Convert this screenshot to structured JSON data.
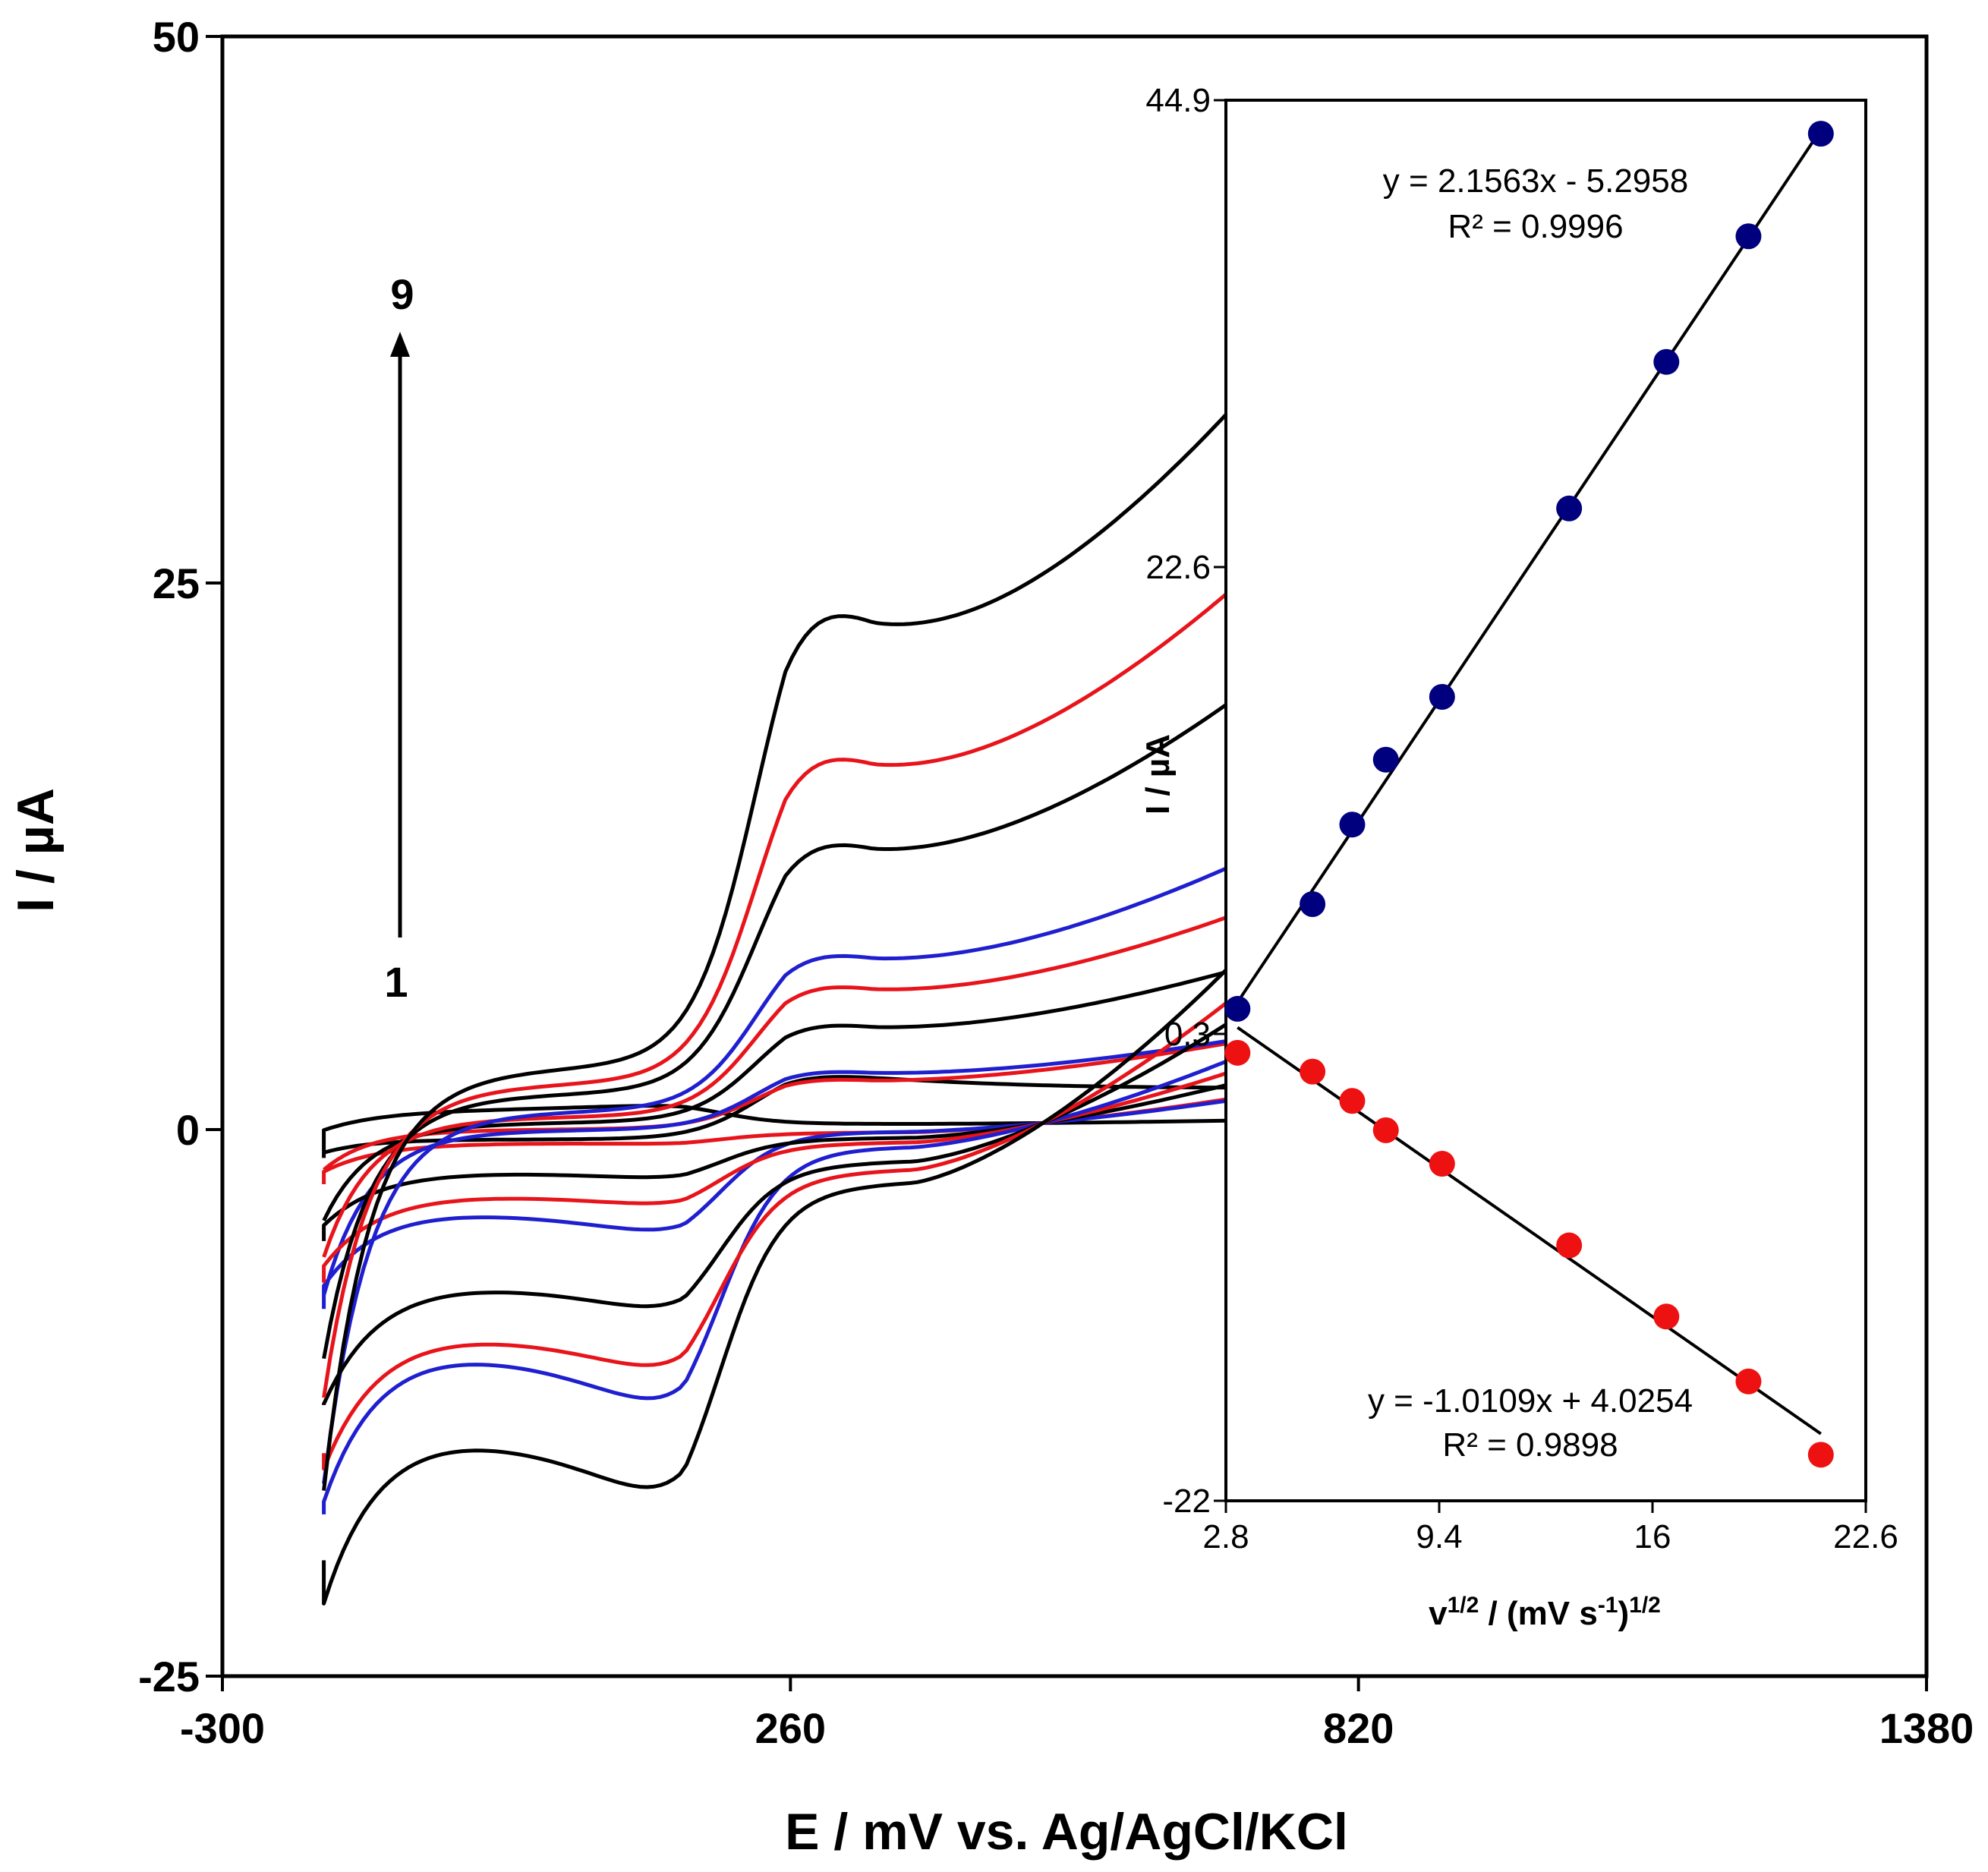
{
  "chart_data": [
    {
      "type": "line",
      "xlabel": "E / mV vs. Ag/AgCl/KCl",
      "ylabel": "I / µA",
      "xlim": [
        -300,
        1380
      ],
      "ylim": [
        -25,
        50
      ],
      "x_ticks": [
        "-300",
        "260",
        "820",
        "1380"
      ],
      "y_ticks": [
        "-25",
        "0",
        "25",
        "50"
      ],
      "scan_range": [
        -200,
        710
      ],
      "series_colors": [
        "#000000",
        "#e8141b",
        "#1f1fd0",
        "#000000",
        "#e8141b",
        "#1f1fd0",
        "#000000",
        "#e8141b",
        "#000000"
      ],
      "series": [
        {
          "anodic_peak_E": 255,
          "anodic_peak_I": 3.8,
          "cathodic_peak_E": 155,
          "cathodic_peak_I": 1.0,
          "start_I": -1.3,
          "end_I": 1.3
        },
        {
          "anodic_peak_E": 255,
          "anodic_peak_I": 5.5,
          "cathodic_peak_E": 155,
          "cathodic_peak_I": -1.0,
          "start_I": -2.5,
          "end_I": 4.0
        },
        {
          "anodic_peak_E": 255,
          "anodic_peak_I": 5.8,
          "cathodic_peak_E": 155,
          "cathodic_peak_I": -5.9,
          "start_I": -8.2,
          "end_I": 3.8
        },
        {
          "anodic_peak_E": 255,
          "anodic_peak_I": 9.8,
          "cathodic_peak_E": 155,
          "cathodic_peak_I": -2.8,
          "start_I": -5.1,
          "end_I": 5.8
        },
        {
          "anodic_peak_E": 255,
          "anodic_peak_I": 13.0,
          "cathodic_peak_E": 155,
          "cathodic_peak_I": -4.2,
          "start_I": -7.0,
          "end_I": 7.3
        },
        {
          "anodic_peak_E": 255,
          "anodic_peak_I": 15.8,
          "cathodic_peak_E": 155,
          "cathodic_peak_I": -15.2,
          "start_I": -17.6,
          "end_I": 8.8
        },
        {
          "anodic_peak_E": 255,
          "anodic_peak_I": 25.3,
          "cathodic_peak_E": 155,
          "cathodic_peak_I": -9.7,
          "start_I": -12.6,
          "end_I": 13.5
        },
        {
          "anodic_peak_E": 255,
          "anodic_peak_I": 32.0,
          "cathodic_peak_E": 155,
          "cathodic_peak_I": -12.9,
          "start_I": -14.8,
          "end_I": 16.2
        },
        {
          "anodic_peak_E": 255,
          "anodic_peak_I": 43.0,
          "cathodic_peak_E": 155,
          "cathodic_peak_I": -19.6,
          "start_I": -19.7,
          "end_I": 20.4
        }
      ],
      "annotations": {
        "arrow_from": "1",
        "arrow_to": "9"
      }
    },
    {
      "type": "scatter",
      "xlabel_main": "v",
      "xlabel_sup1": "1/2",
      "xlabel_mid": " / (mV  s",
      "xlabel_sup2": "-1",
      "xlabel_end": ")",
      "xlabel_sup3": "1/2",
      "ylabel": "I / µA",
      "xlim": [
        2.8,
        22.6
      ],
      "ylim": [
        -22,
        44.9
      ],
      "x_ticks": [
        "2.8",
        "9.4",
        "16",
        "22.6"
      ],
      "y_ticks": [
        "44.9",
        "22.6",
        "0.3",
        "-22"
      ],
      "x": [
        3.16,
        5.48,
        6.71,
        7.75,
        9.49,
        13.42,
        16.43,
        18.97,
        21.21
      ],
      "series": [
        {
          "color": "#00007f",
          "values": [
            1.5,
            6.5,
            10.3,
            13.4,
            16.4,
            25.4,
            32.4,
            38.4,
            43.3
          ]
        },
        {
          "color": "#ee1111",
          "values": [
            -0.6,
            -1.5,
            -2.9,
            -4.3,
            -5.9,
            -9.8,
            -13.2,
            -16.3,
            -19.8
          ]
        }
      ],
      "fits": [
        {
          "equation": "y = 2.1563x  - 5.2958",
          "r2": "R² = 0.9996",
          "slope": 2.1563,
          "intercept": -5.2958
        },
        {
          "equation": "y = -1.0109x  + 4.0254",
          "r2": "R² = 0.9898",
          "slope": -1.0109,
          "intercept": 4.0254
        }
      ]
    }
  ]
}
